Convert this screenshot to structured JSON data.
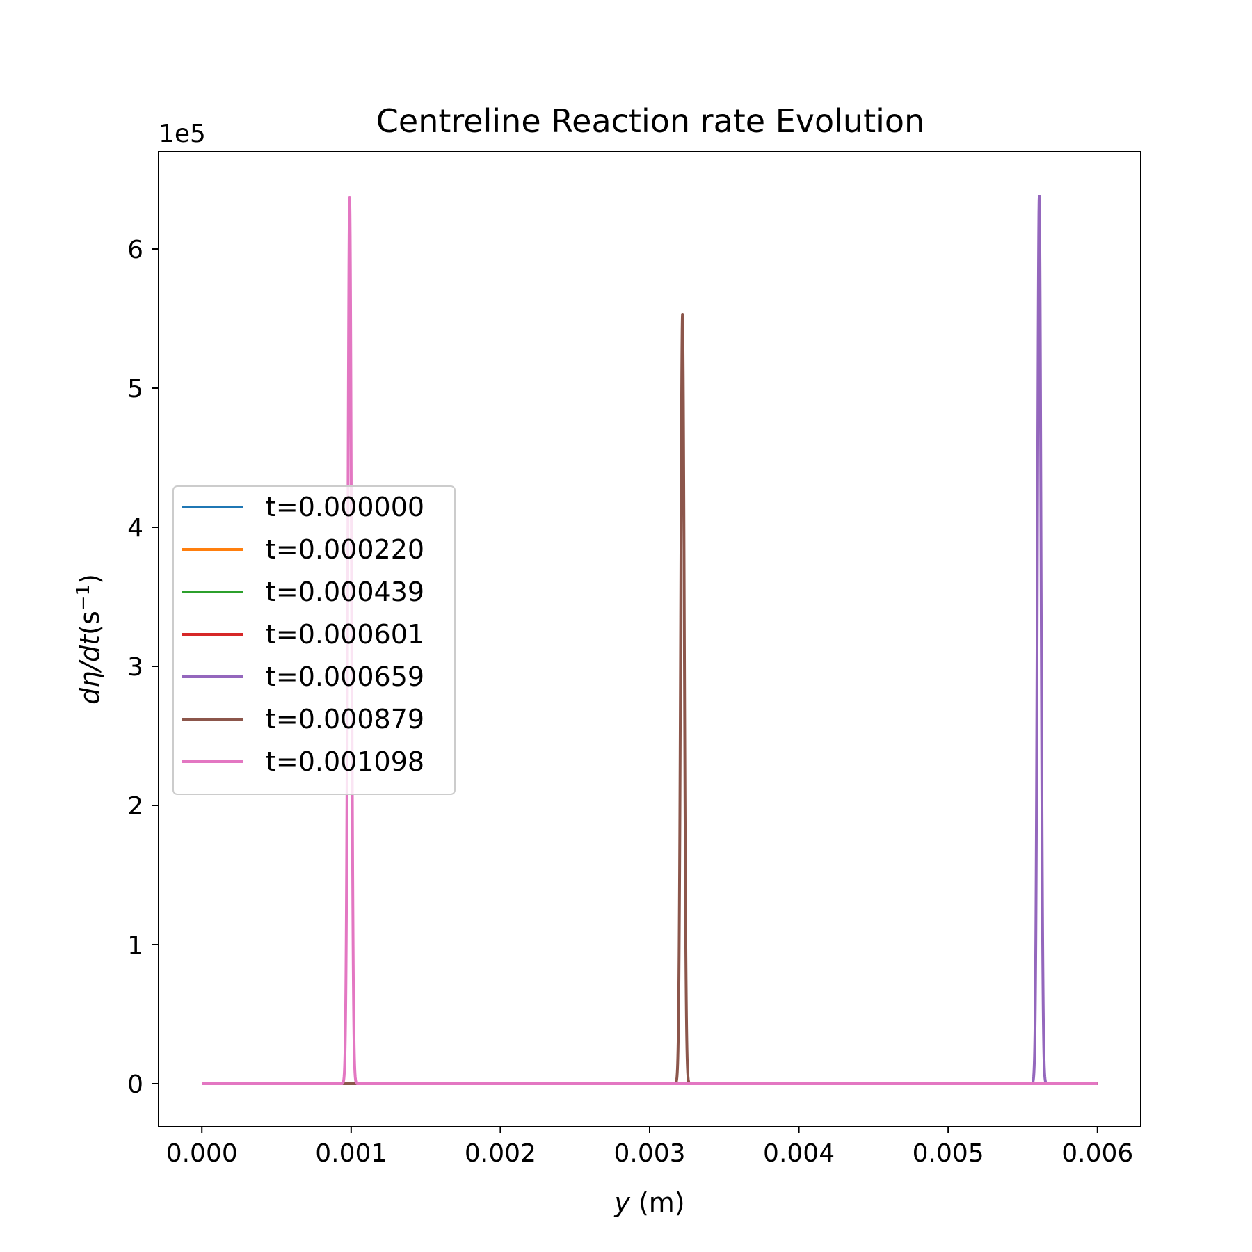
{
  "chart_data": {
    "type": "line",
    "title": "Centreline Reaction rate Evolution",
    "xlabel_var": "y",
    "xlabel_unit": " (m)",
    "ylabel_math": "dη/dt",
    "ylabel_open": "(s",
    "ylabel_sup": "−1",
    "ylabel_close": ")",
    "y_offset_text": "1e5",
    "xlim": [
      -0.00029,
      0.00629
    ],
    "ylim": [
      -0.31,
      6.7
    ],
    "x_ticks": [
      0.0,
      0.001,
      0.002,
      0.003,
      0.004,
      0.005,
      0.006
    ],
    "x_tick_labels": [
      "0.000",
      "0.001",
      "0.002",
      "0.003",
      "0.004",
      "0.005",
      "0.006"
    ],
    "y_ticks": [
      0,
      1,
      2,
      3,
      4,
      5,
      6
    ],
    "y_tick_labels": [
      "0",
      "1",
      "2",
      "3",
      "4",
      "5",
      "6"
    ],
    "legend_position": "center-left",
    "series": [
      {
        "name": "t=0.000000",
        "color": "#1f77b4",
        "peak_x": null,
        "peak_y": 0
      },
      {
        "name": "t=0.000220",
        "color": "#ff7f0e",
        "peak_x": null,
        "peak_y": 0
      },
      {
        "name": "t=0.000439",
        "color": "#2ca02c",
        "peak_x": null,
        "peak_y": 0
      },
      {
        "name": "t=0.000601",
        "color": "#d62728",
        "peak_x": null,
        "peak_y": 0
      },
      {
        "name": "t=0.000659",
        "color": "#9467bd",
        "peak_x": 0.00561,
        "peak_y": 6.38
      },
      {
        "name": "t=0.000879",
        "color": "#8c564b",
        "peak_x": 0.00322,
        "peak_y": 5.53
      },
      {
        "name": "t=0.001098",
        "color": "#e377c2",
        "peak_x": 0.00099,
        "peak_y": 6.37
      }
    ],
    "x_range": [
      0.0,
      0.006
    ]
  }
}
